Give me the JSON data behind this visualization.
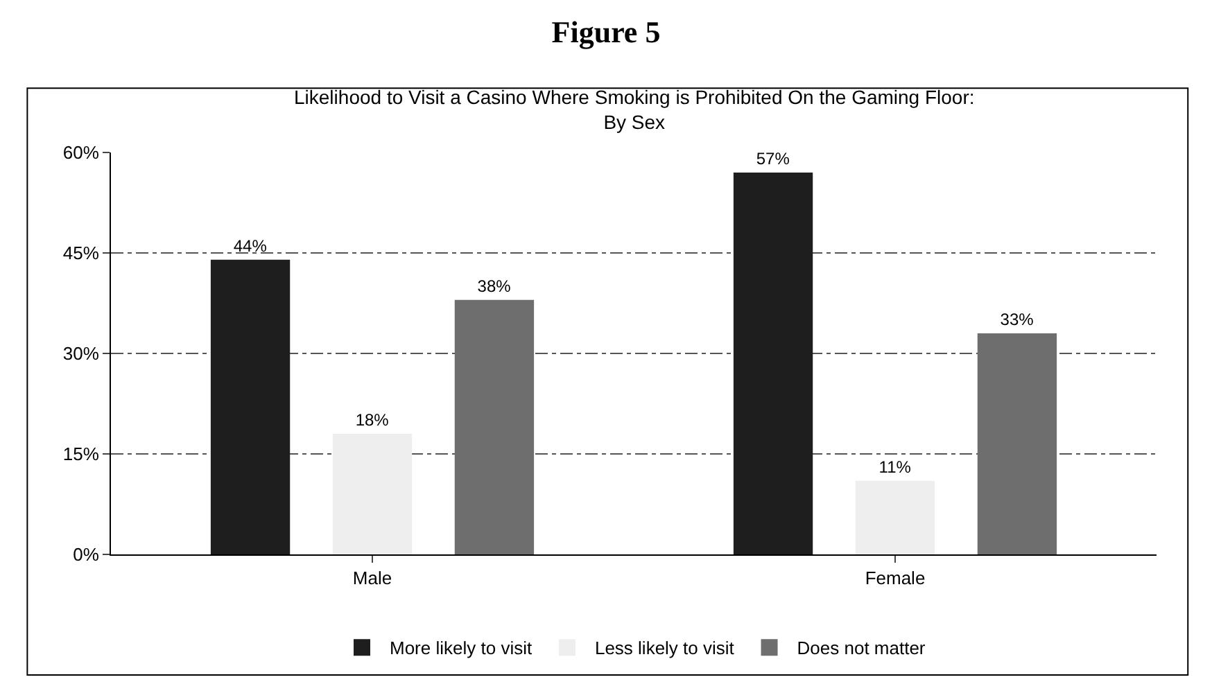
{
  "chart_data": {
    "type": "bar",
    "title": "Figure 5",
    "subtitle": "Likelihood to Visit a Casino Where Smoking is Prohibited On the Gaming Floor:\nBy Sex",
    "categories": [
      "Male",
      "Female"
    ],
    "series": [
      {
        "name": "More likely to visit",
        "color": "#1e1e1e",
        "values": [
          44,
          57
        ],
        "value_labels": [
          "44%",
          "57%"
        ]
      },
      {
        "name": "Less likely to visit",
        "color": "#eeeeee",
        "values": [
          18,
          11
        ],
        "value_labels": [
          "18%",
          "11%"
        ]
      },
      {
        "name": "Does not matter",
        "color": "#6e6e6e",
        "values": [
          38,
          33
        ],
        "value_labels": [
          "38%",
          "33%"
        ]
      }
    ],
    "ylim": [
      0,
      60
    ],
    "yticks": [
      {
        "value": 0,
        "label": "0%"
      },
      {
        "value": 15,
        "label": "15%"
      },
      {
        "value": 30,
        "label": "30%"
      },
      {
        "value": 45,
        "label": "45%"
      },
      {
        "value": 60,
        "label": "60%"
      }
    ],
    "grid": "y",
    "legend": "bottom"
  }
}
